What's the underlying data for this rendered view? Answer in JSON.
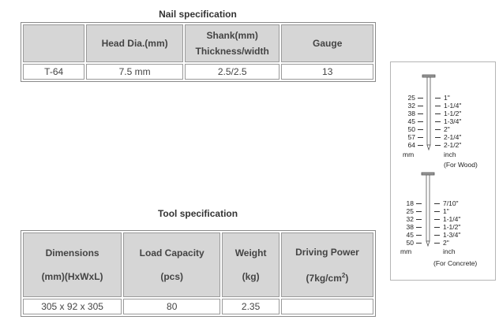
{
  "nail_spec": {
    "title": "Nail specification",
    "headers": [
      "",
      "Head Dia.(mm)",
      "Shank(mm)",
      "Thickness/width",
      "Gauge"
    ],
    "row": [
      "T-64",
      "7.5 mm",
      "2.5/2.5",
      "13"
    ]
  },
  "tool_spec": {
    "title": "Tool specification",
    "headers": {
      "dimensions": "Dimensions",
      "dimensions_unit": "(mm)(HxWxL)",
      "load": "Load Capacity",
      "load_unit": "(pcs)",
      "weight": "Weight",
      "weight_unit": "(kg)",
      "power": "Driving Power",
      "power_unit": "(7kg/cm",
      "power_sup": "2",
      "power_close": ")"
    },
    "row": [
      "305 x 92 x 305",
      "80",
      "2.35",
      ""
    ]
  },
  "diagram": {
    "wood": {
      "mm": [
        "25",
        "32",
        "38",
        "45",
        "50",
        "57",
        "64"
      ],
      "inch": [
        "1\"",
        "1-1/4\"",
        "1-1/2\"",
        "1-3/4\"",
        "2\"",
        "2-1/4\"",
        "2-1/2\""
      ],
      "mm_label": "mm",
      "inch_label": "inch",
      "note": "(For Wood)"
    },
    "concrete": {
      "mm": [
        "18",
        "25",
        "32",
        "38",
        "45",
        "50"
      ],
      "inch": [
        "7/10\"",
        "1\"",
        "1-1/4\"",
        "1-1/2\"",
        "1-3/4\"",
        "2\""
      ],
      "mm_label": "mm",
      "inch_label": "inch",
      "note": "(For Concrete)"
    }
  }
}
